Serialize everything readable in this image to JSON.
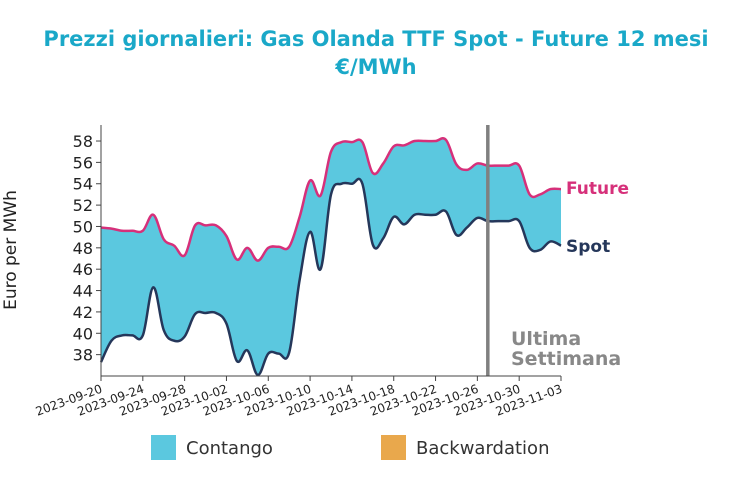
{
  "chart_data": {
    "type": "area",
    "title_line1": "Prezzi giornalieri: Gas Olanda TTF Spot - Future 12 mesi",
    "title_line2": "€/MWh",
    "ylabel": "Euro per MWh",
    "xlabel": "",
    "ylim": [
      36,
      59.5
    ],
    "y_ticks": [
      38,
      40,
      42,
      44,
      46,
      48,
      50,
      52,
      54,
      56,
      58
    ],
    "x_range": [
      "2023-09-20",
      "2023-11-03"
    ],
    "x_ticks": [
      "2023-09-20",
      "2023-09-24",
      "2023-09-28",
      "2023-10-02",
      "2023-10-06",
      "2023-10-10",
      "2023-10-14",
      "2023-10-18",
      "2023-10-22",
      "2023-10-26",
      "2023-10-30",
      "2023-11-03"
    ],
    "series": [
      {
        "name": "Future",
        "color": "#d6307a",
        "points": [
          [
            "2023-09-20",
            49.9
          ],
          [
            "2023-09-21",
            49.8
          ],
          [
            "2023-09-22",
            49.6
          ],
          [
            "2023-09-23",
            49.6
          ],
          [
            "2023-09-24",
            49.6
          ],
          [
            "2023-09-25",
            51.1
          ],
          [
            "2023-09-26",
            48.8
          ],
          [
            "2023-09-27",
            48.2
          ],
          [
            "2023-09-28",
            47.3
          ],
          [
            "2023-09-29",
            50.1
          ],
          [
            "2023-09-30",
            50.1
          ],
          [
            "2023-10-01",
            50.1
          ],
          [
            "2023-10-02",
            49.1
          ],
          [
            "2023-10-03",
            46.9
          ],
          [
            "2023-10-04",
            48.0
          ],
          [
            "2023-10-05",
            46.8
          ],
          [
            "2023-10-06",
            48.0
          ],
          [
            "2023-10-07",
            48.1
          ],
          [
            "2023-10-08",
            48.1
          ],
          [
            "2023-10-09",
            50.9
          ],
          [
            "2023-10-10",
            54.3
          ],
          [
            "2023-10-11",
            52.9
          ],
          [
            "2023-10-12",
            57.0
          ],
          [
            "2023-10-13",
            57.9
          ],
          [
            "2023-10-14",
            57.9
          ],
          [
            "2023-10-15",
            57.9
          ],
          [
            "2023-10-16",
            55.0
          ],
          [
            "2023-10-17",
            55.9
          ],
          [
            "2023-10-18",
            57.5
          ],
          [
            "2023-10-19",
            57.6
          ],
          [
            "2023-10-20",
            58.0
          ],
          [
            "2023-10-21",
            58.0
          ],
          [
            "2023-10-22",
            58.0
          ],
          [
            "2023-10-23",
            58.1
          ],
          [
            "2023-10-24",
            55.8
          ],
          [
            "2023-10-25",
            55.3
          ],
          [
            "2023-10-26",
            55.9
          ],
          [
            "2023-10-27",
            55.7
          ],
          [
            "2023-10-28",
            55.7
          ],
          [
            "2023-10-29",
            55.7
          ],
          [
            "2023-10-30",
            55.7
          ],
          [
            "2023-10-31",
            53.0
          ],
          [
            "2023-11-01",
            53.0
          ],
          [
            "2023-11-02",
            53.5
          ],
          [
            "2023-11-03",
            53.5
          ]
        ]
      },
      {
        "name": "Spot",
        "color": "#25375a",
        "points": [
          [
            "2023-09-20",
            37.3
          ],
          [
            "2023-09-21",
            39.3
          ],
          [
            "2023-09-22",
            39.8
          ],
          [
            "2023-09-23",
            39.8
          ],
          [
            "2023-09-24",
            39.8
          ],
          [
            "2023-09-25",
            44.3
          ],
          [
            "2023-09-26",
            40.3
          ],
          [
            "2023-09-27",
            39.3
          ],
          [
            "2023-09-28",
            39.7
          ],
          [
            "2023-09-29",
            41.8
          ],
          [
            "2023-09-30",
            41.9
          ],
          [
            "2023-10-01",
            41.9
          ],
          [
            "2023-10-02",
            40.9
          ],
          [
            "2023-10-03",
            37.4
          ],
          [
            "2023-10-04",
            38.4
          ],
          [
            "2023-10-05",
            36.1
          ],
          [
            "2023-10-06",
            38.1
          ],
          [
            "2023-10-07",
            38.1
          ],
          [
            "2023-10-08",
            38.2
          ],
          [
            "2023-10-09",
            45.0
          ],
          [
            "2023-10-10",
            49.5
          ],
          [
            "2023-10-11",
            46.0
          ],
          [
            "2023-10-12",
            53.0
          ],
          [
            "2023-10-13",
            54.0
          ],
          [
            "2023-10-14",
            54.0
          ],
          [
            "2023-10-15",
            54.0
          ],
          [
            "2023-10-16",
            48.3
          ],
          [
            "2023-10-17",
            48.9
          ],
          [
            "2023-10-18",
            50.9
          ],
          [
            "2023-10-19",
            50.2
          ],
          [
            "2023-10-20",
            51.1
          ],
          [
            "2023-10-21",
            51.1
          ],
          [
            "2023-10-22",
            51.1
          ],
          [
            "2023-10-23",
            51.4
          ],
          [
            "2023-10-24",
            49.2
          ],
          [
            "2023-10-25",
            49.9
          ],
          [
            "2023-10-26",
            50.8
          ],
          [
            "2023-10-27",
            50.5
          ],
          [
            "2023-10-28",
            50.5
          ],
          [
            "2023-10-29",
            50.5
          ],
          [
            "2023-10-30",
            50.5
          ],
          [
            "2023-10-31",
            48.0
          ],
          [
            "2023-11-01",
            47.8
          ],
          [
            "2023-11-02",
            48.6
          ],
          [
            "2023-11-03",
            48.2
          ]
        ]
      }
    ],
    "contango_color": "#5bc8df",
    "backwardation_color": "#e9a84c",
    "legend": [
      {
        "label": "Contango",
        "color": "#5bc8df"
      },
      {
        "label": "Backwardation",
        "color": "#e9a84c"
      }
    ],
    "legend_position": "bottom",
    "grid": false,
    "vline": {
      "x": "2023-10-27",
      "color": "#808080"
    },
    "annotation_line1": "Ultima",
    "annotation_line2": "Settimana"
  }
}
